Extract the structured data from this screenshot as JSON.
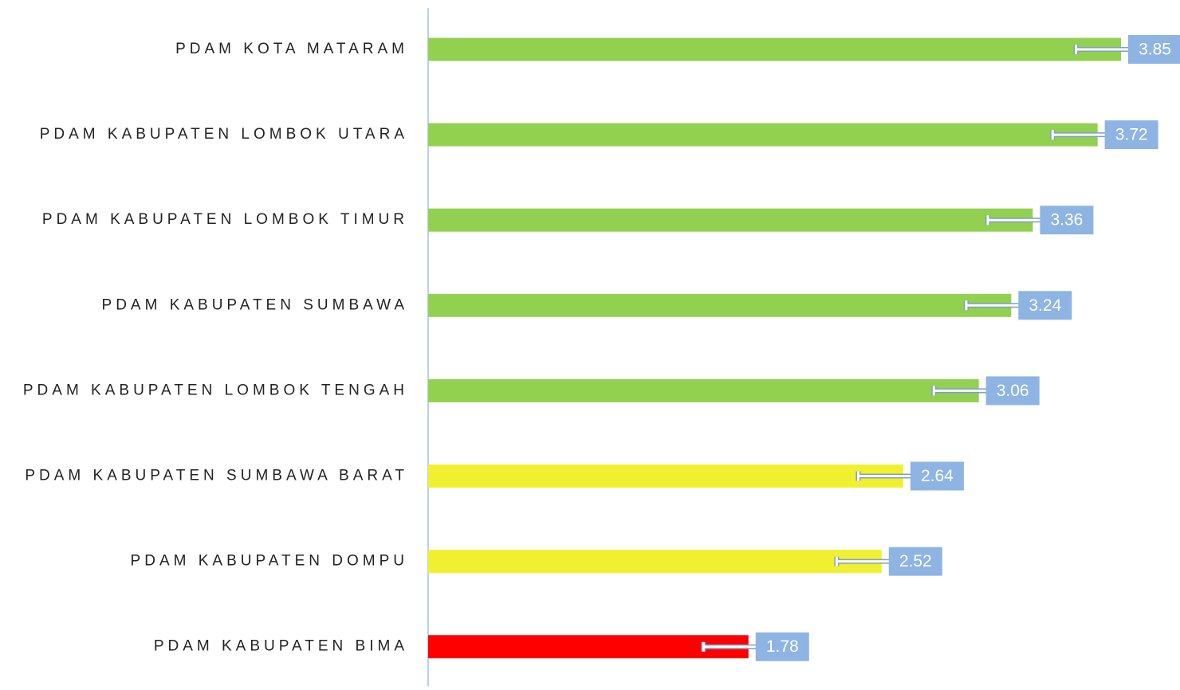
{
  "chart_data": {
    "type": "hbar",
    "categories": [
      "PDAM KOTA MATARAM",
      "PDAM KABUPATEN LOMBOK UTARA",
      "PDAM KABUPATEN LOMBOK TIMUR",
      "PDAM KABUPATEN SUMBAWA",
      "PDAM KABUPATEN LOMBOK TENGAH",
      "PDAM KABUPATEN SUMBAWA BARAT",
      "PDAM KABUPATEN DOMPU",
      "PDAM KABUPATEN BIMA"
    ],
    "values": [
      3.85,
      3.72,
      3.36,
      3.24,
      3.06,
      2.64,
      2.52,
      1.78
    ],
    "errors": [
      0.25,
      0.25,
      0.25,
      0.25,
      0.25,
      0.25,
      0.25,
      0.25
    ],
    "colors": [
      "#92d050",
      "#92d050",
      "#92d050",
      "#92d050",
      "#92d050",
      "#f0f030",
      "#f0f030",
      "#ff0000"
    ],
    "label_color": "#8db4e2"
  }
}
